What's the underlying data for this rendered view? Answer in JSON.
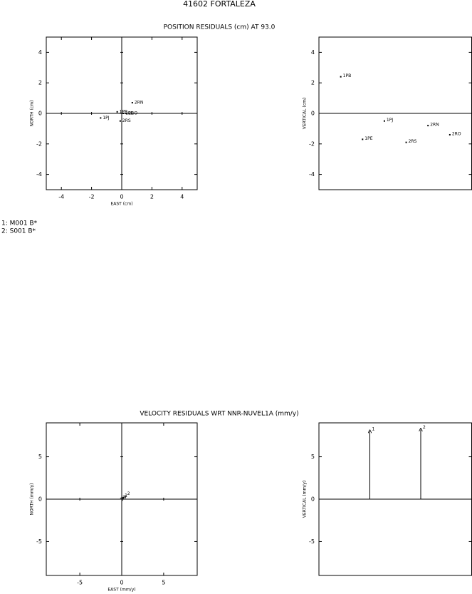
{
  "title": "41602 FORTALEZA",
  "position_title": "POSITION RESIDUALS (cm) AT 93.0",
  "velocity_title": "VELOCITY RESIDUALS WRT NNR-NUVEL1A (mm/y)",
  "notes": [
    "1: M001 B*",
    "2: S001 B*"
  ],
  "chart_data": [
    {
      "type": "scatter",
      "x_label": "EAST (cm)",
      "y_label": "NORTH (cm)",
      "xlim": [
        -5,
        5
      ],
      "ylim": [
        -5,
        5
      ],
      "xticks": [
        -4,
        -2,
        0,
        2,
        4
      ],
      "yticks": [
        -4,
        -2,
        0,
        2,
        4
      ],
      "labels": [
        "1PB",
        "1PE",
        "1PJ",
        "2RS",
        "2RN",
        "2RO"
      ],
      "x": [
        -0.3,
        0.1,
        -1.4,
        -0.1,
        0.7,
        0.3
      ],
      "values": [
        0.1,
        0.0,
        -0.3,
        -0.5,
        0.7,
        0.0
      ]
    },
    {
      "type": "dot",
      "y_label": "VERTICAL (cm)",
      "ylim": [
        -5,
        5
      ],
      "yticks": [
        -4,
        -2,
        0,
        2,
        4
      ],
      "categories": [
        "1PB",
        "1PE",
        "1PJ",
        "2RS",
        "2RN",
        "2RO"
      ],
      "values": [
        2.4,
        -1.7,
        -0.5,
        -1.9,
        -0.8,
        -1.4
      ]
    },
    {
      "type": "vector",
      "x_label": "EAST (mm/y)",
      "y_label": "NORTH (mm/y)",
      "xlim": [
        -9,
        9
      ],
      "ylim": [
        -9,
        9
      ],
      "xticks": [
        -5,
        0,
        5
      ],
      "yticks": [
        -5,
        0,
        5
      ],
      "labels": [
        "1",
        "2"
      ],
      "x": [
        0.1,
        0.4
      ],
      "values": [
        0.1,
        0.3
      ]
    },
    {
      "type": "stem",
      "y_label": "VERTICAL (mm/y)",
      "ylim": [
        -9,
        9
      ],
      "yticks": [
        -5,
        0,
        5
      ],
      "categories": [
        "1",
        "2"
      ],
      "values": [
        8.0,
        8.2
      ]
    }
  ]
}
